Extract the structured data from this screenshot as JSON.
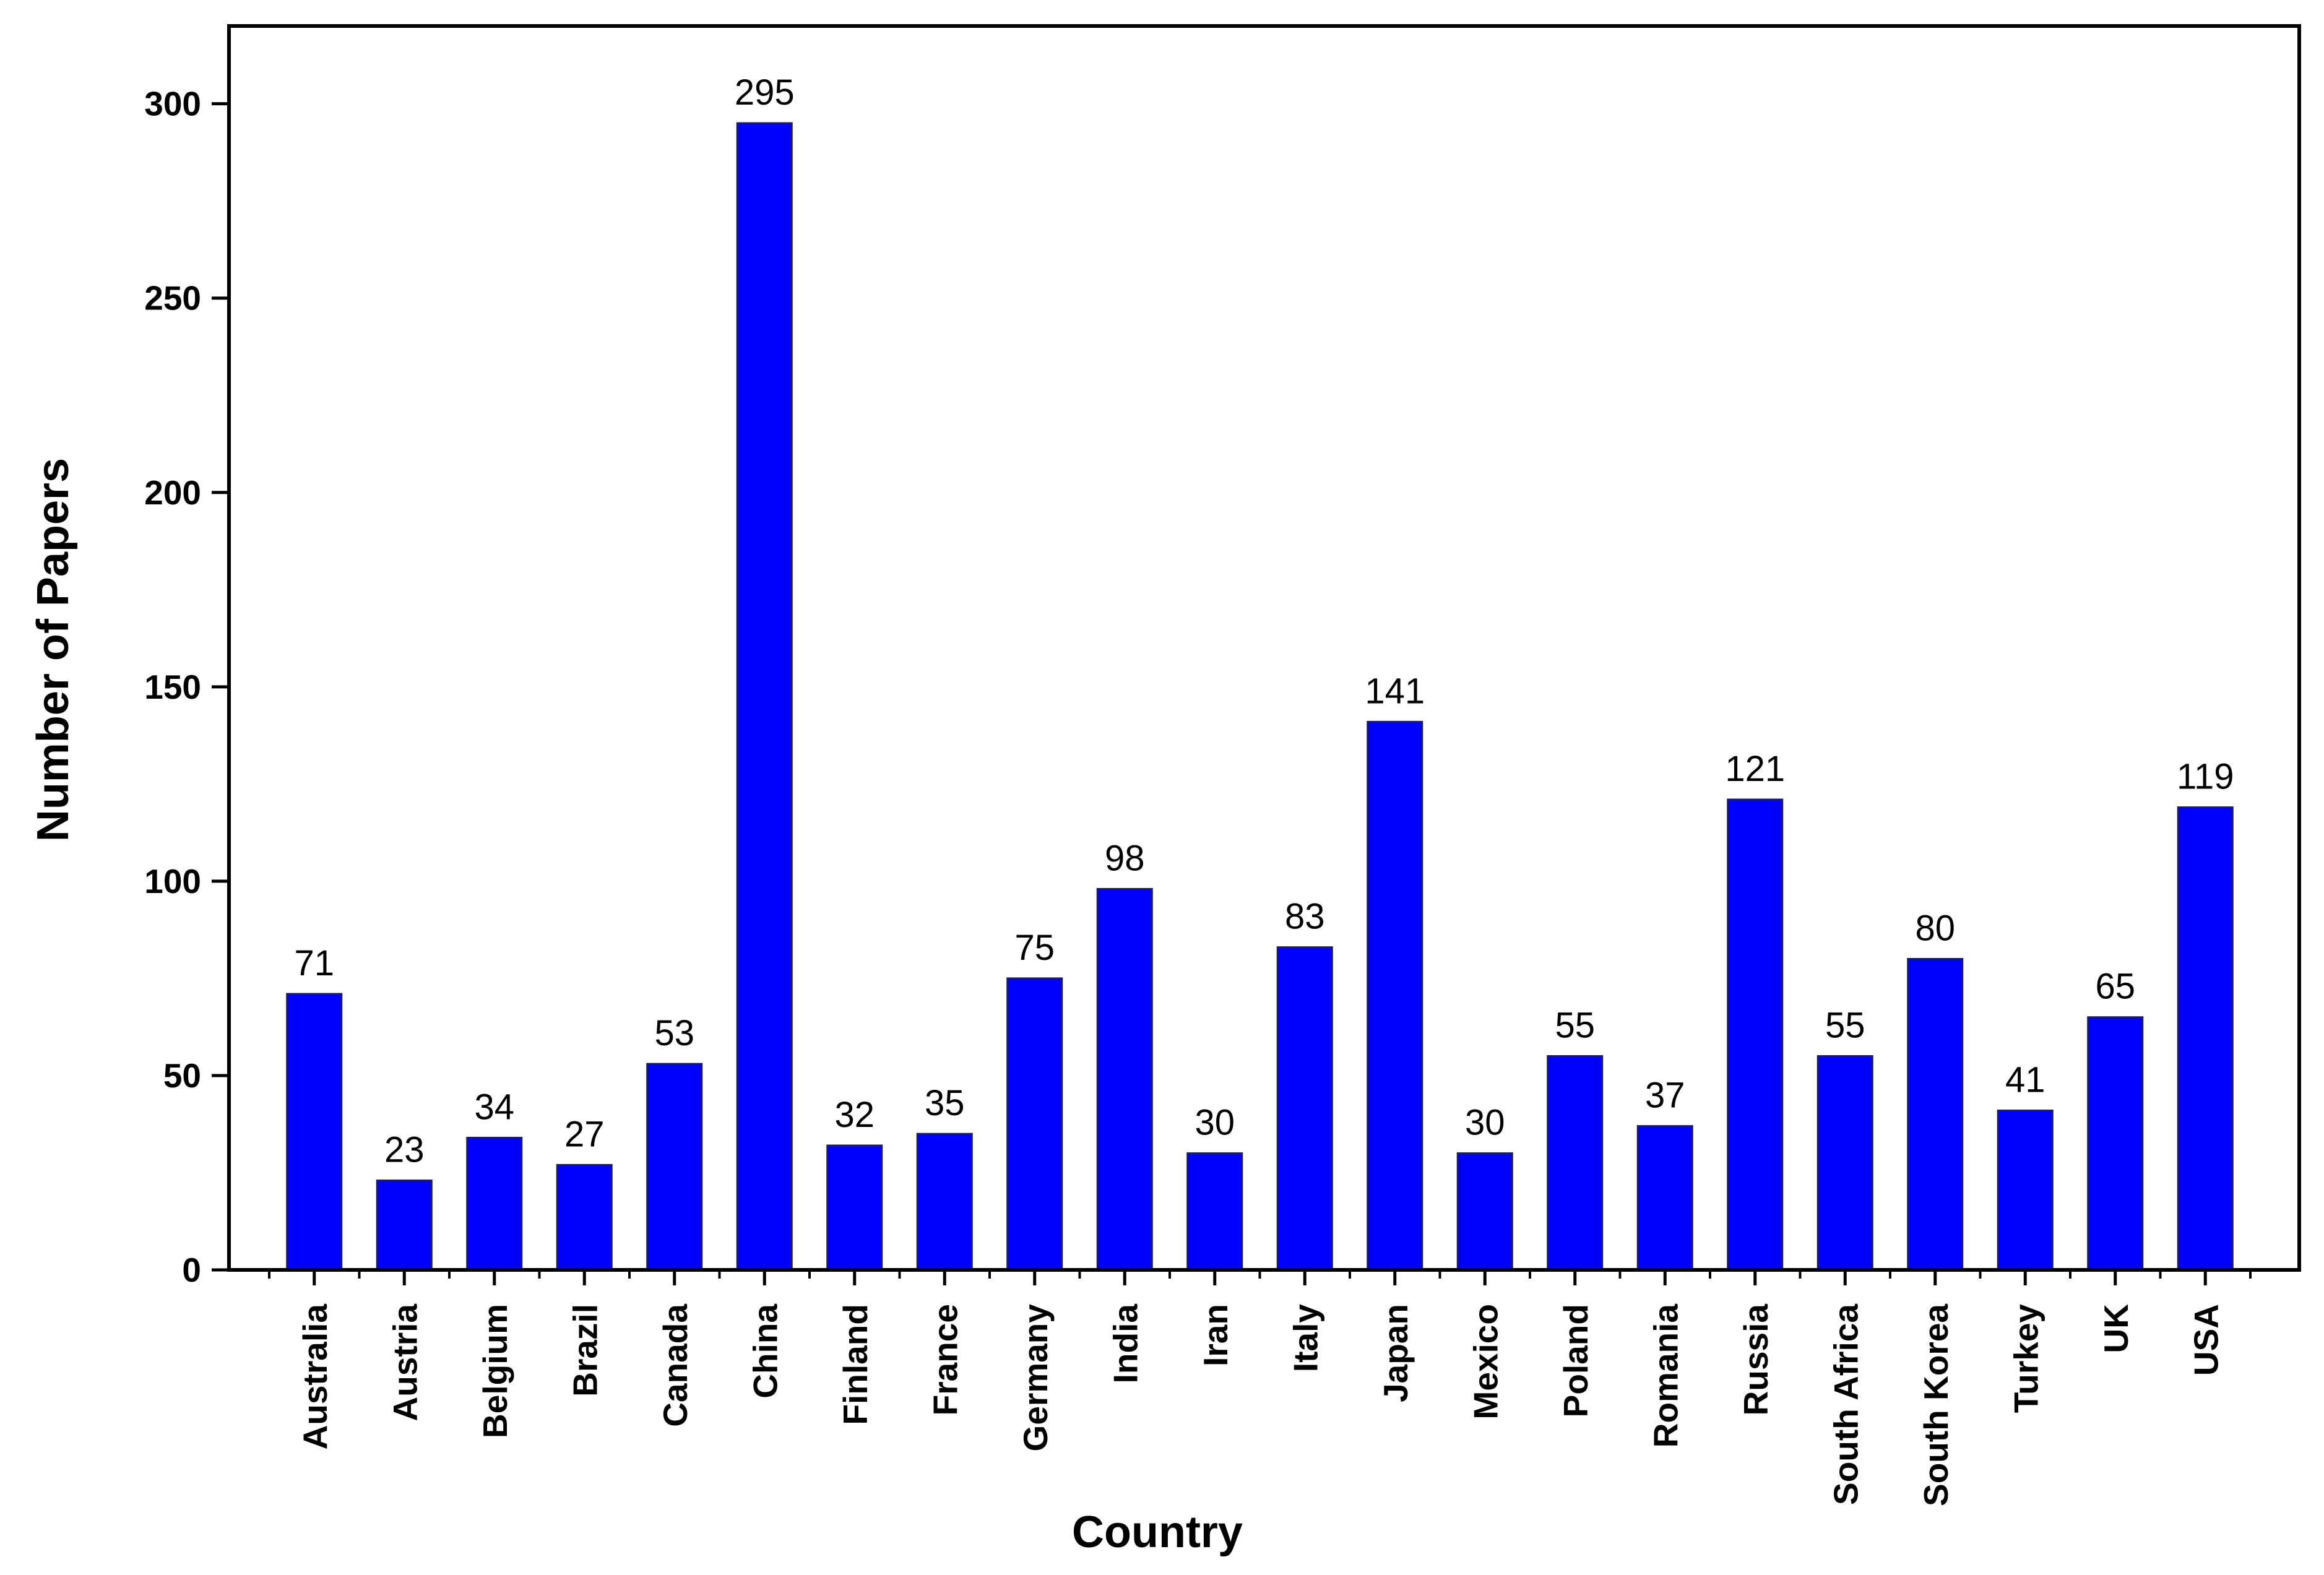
{
  "chart_data": {
    "type": "bar",
    "title": "",
    "xlabel": "Country",
    "ylabel": "Number of Papers",
    "categories": [
      "Australia",
      "Austria",
      "Belgium",
      "Brazil",
      "Canada",
      "China",
      "Finland",
      "France",
      "Germany",
      "India",
      "Iran",
      "Italy",
      "Japan",
      "Mexico",
      "Poland",
      "Romania",
      "Russia",
      "South Africa",
      "South Korea",
      "Turkey",
      "UK",
      "USA"
    ],
    "values": [
      71,
      23,
      34,
      27,
      53,
      295,
      32,
      35,
      75,
      98,
      30,
      83,
      141,
      30,
      55,
      37,
      121,
      55,
      80,
      41,
      65,
      119
    ],
    "data_labels": [
      "71",
      "23",
      "34",
      "27",
      "53",
      "295",
      "32",
      "35",
      "75",
      "98",
      "30",
      "83",
      "141",
      "30",
      "55",
      "37",
      "121",
      "55",
      "80",
      "41",
      "65",
      "119"
    ],
    "ylim": [
      0,
      320
    ],
    "yticks": [
      0,
      50,
      100,
      150,
      200,
      250,
      300
    ],
    "ytick_labels": [
      "0",
      "50",
      "100",
      "150",
      "200",
      "250",
      "300"
    ],
    "grid": false,
    "legend": "none",
    "bar_color": "#0000ff"
  }
}
